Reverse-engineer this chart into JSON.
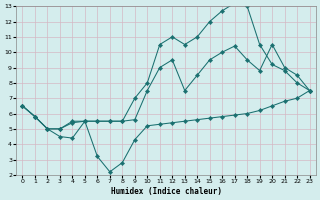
{
  "xlabel": "Humidex (Indice chaleur)",
  "bg_color": "#d4eded",
  "grid_color": "#b8d4d4",
  "line_color": "#1a7070",
  "xlim": [
    -0.5,
    23.5
  ],
  "ylim": [
    2,
    13
  ],
  "xticks": [
    0,
    1,
    2,
    3,
    4,
    5,
    6,
    7,
    8,
    9,
    10,
    11,
    12,
    13,
    14,
    15,
    16,
    17,
    18,
    19,
    20,
    21,
    22,
    23
  ],
  "yticks": [
    2,
    3,
    4,
    5,
    6,
    7,
    8,
    9,
    10,
    11,
    12,
    13
  ],
  "line1_x": [
    0,
    1,
    2,
    3,
    4,
    5,
    6,
    7,
    8,
    9,
    10,
    11,
    12,
    13,
    14,
    15,
    16,
    17,
    18,
    19,
    20,
    21,
    22,
    23
  ],
  "line1_y": [
    6.5,
    5.8,
    5.0,
    4.5,
    4.4,
    5.5,
    3.2,
    2.2,
    2.8,
    4.3,
    5.2,
    5.3,
    5.4,
    5.5,
    5.6,
    5.7,
    5.8,
    5.9,
    6.0,
    6.2,
    6.5,
    6.8,
    7.0,
    7.5
  ],
  "line2_x": [
    0,
    1,
    2,
    3,
    4,
    5,
    6,
    7,
    8,
    9,
    10,
    11,
    12,
    13,
    14,
    15,
    16,
    17,
    18,
    19,
    20,
    21,
    22,
    23
  ],
  "line2_y": [
    6.5,
    5.8,
    5.0,
    5.0,
    5.5,
    5.5,
    5.5,
    5.5,
    5.5,
    7.0,
    8.0,
    10.5,
    11.0,
    10.5,
    11.0,
    12.0,
    12.7,
    13.2,
    13.0,
    10.5,
    9.2,
    8.8,
    8.0,
    7.5
  ],
  "line3_x": [
    0,
    1,
    2,
    3,
    4,
    5,
    6,
    7,
    8,
    9,
    10,
    11,
    12,
    13,
    14,
    15,
    16,
    17,
    18,
    19,
    20,
    21,
    22,
    23
  ],
  "line3_y": [
    6.5,
    5.8,
    5.0,
    5.0,
    5.4,
    5.5,
    5.5,
    5.5,
    5.5,
    5.6,
    7.5,
    9.0,
    9.5,
    7.5,
    8.5,
    9.5,
    10.0,
    10.4,
    9.5,
    8.8,
    10.5,
    9.0,
    8.5,
    7.5
  ]
}
